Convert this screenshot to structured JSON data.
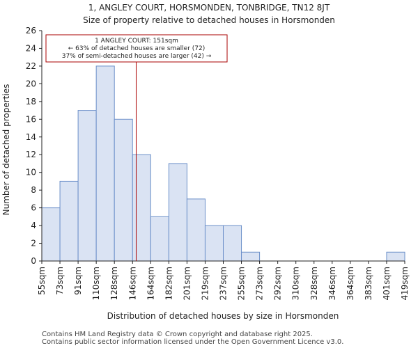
{
  "title": {
    "line1": "1, ANGLEY COURT, HORSMONDEN, TONBRIDGE, TN12 8JT",
    "line2": "Size of property relative to detached houses in Horsmonden"
  },
  "footer": {
    "line1": "Contains HM Land Registry data © Crown copyright and database right 2025.",
    "line2": "Contains public sector information licensed under the Open Government Licence v3.0."
  },
  "colors": {
    "bar_fill": "#dae3f3",
    "bar_stroke": "#6b8fc9",
    "marker": "#aa0000",
    "annotation_border": "#aa0000",
    "axis": "#222222"
  },
  "chart_data": {
    "type": "bar",
    "title": "1, ANGLEY COURT, HORSMONDEN, TONBRIDGE, TN12 8JT — Size of property relative to detached houses in Horsmonden",
    "xlabel": "Distribution of detached houses by size in Horsmonden",
    "ylabel": "Number of detached properties",
    "bin_edges": [
      "55sqm",
      "73sqm",
      "91sqm",
      "110sqm",
      "128sqm",
      "146sqm",
      "164sqm",
      "182sqm",
      "201sqm",
      "219sqm",
      "237sqm",
      "255sqm",
      "273sqm",
      "292sqm",
      "310sqm",
      "328sqm",
      "346sqm",
      "364sqm",
      "383sqm",
      "401sqm",
      "419sqm"
    ],
    "values": [
      6,
      9,
      17,
      22,
      16,
      12,
      5,
      11,
      7,
      4,
      4,
      1,
      0,
      0,
      0,
      0,
      0,
      0,
      0,
      1
    ],
    "ylim": [
      0,
      26
    ],
    "yticks": [
      0,
      2,
      4,
      6,
      8,
      10,
      12,
      14,
      16,
      18,
      20,
      22,
      24,
      26
    ],
    "marker": {
      "value_bin_position": 5.2,
      "label": "1 ANGLEY COURT: 151sqm",
      "line2": "← 63% of detached houses are smaller (72)",
      "line3": "37% of semi-detached houses are larger (42) →"
    }
  }
}
